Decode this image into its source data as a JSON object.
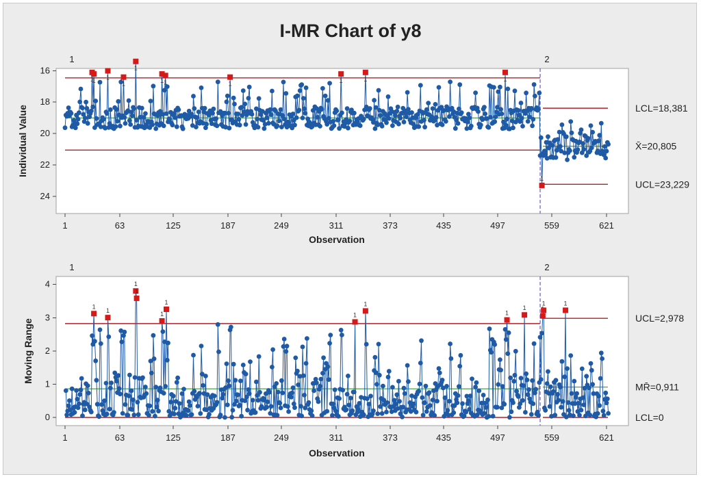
{
  "colors": {
    "data": "#1f5aa6",
    "limits": "#b21f24",
    "center": "#3a9a3a",
    "flag": "#d61a1a",
    "stage_line": "#6a5acd"
  },
  "chart_data": {
    "type": "line",
    "title": "I-MR Chart of y8",
    "stage_change_observation": 545,
    "charts": [
      {
        "name": "individual",
        "ylabel": "Individual Value",
        "xlabel": "Observation",
        "ylim": [
          15,
          24
        ],
        "yticks": [
          "16",
          "18",
          "20",
          "22",
          "24"
        ],
        "xticks": [
          "1",
          "63",
          "125",
          "187",
          "249",
          "311",
          "373",
          "435",
          "497",
          "559",
          "621"
        ],
        "stages": [
          {
            "label": "1",
            "start": 1,
            "end": 545,
            "mean": 19.0,
            "ucl": 21.05,
            "lcl": 16.45
          },
          {
            "label": "2",
            "start": 545,
            "end": 623,
            "mean": 20.805,
            "ucl": 23.229,
            "lcl": 18.381
          }
        ],
        "annotations": {
          "ucl": "UCL=23,229",
          "center": "X̄=20,805",
          "lcl": "LCL=18,381"
        },
        "flagged_points": [
          {
            "x": 32,
            "y": 16.1
          },
          {
            "x": 34,
            "y": 16.2
          },
          {
            "x": 50,
            "y": 16.0
          },
          {
            "x": 68,
            "y": 16.4
          },
          {
            "x": 82,
            "y": 15.4
          },
          {
            "x": 112,
            "y": 16.2
          },
          {
            "x": 116,
            "y": 16.3
          },
          {
            "x": 190,
            "y": 16.4
          },
          {
            "x": 317,
            "y": 16.2
          },
          {
            "x": 345,
            "y": 16.1
          },
          {
            "x": 505,
            "y": 16.1
          },
          {
            "x": 547,
            "y": 23.3
          }
        ]
      },
      {
        "name": "moving-range",
        "ylabel": "Moving Range",
        "xlabel": "Observation",
        "ylim": [
          -0.2,
          4.1
        ],
        "yticks": [
          "0",
          "1",
          "2",
          "3",
          "4"
        ],
        "xticks": [
          "1",
          "63",
          "125",
          "187",
          "249",
          "311",
          "373",
          "435",
          "497",
          "559",
          "621"
        ],
        "stages": [
          {
            "label": "1",
            "start": 1,
            "end": 545,
            "mean": 0.86,
            "ucl": 2.82,
            "lcl": 0
          },
          {
            "label": "2",
            "start": 545,
            "end": 623,
            "mean": 0.911,
            "ucl": 2.978,
            "lcl": 0
          }
        ],
        "annotations": {
          "ucl": "UCL=2,978",
          "center": "MR̄=0,911",
          "lcl": "LCL=0"
        },
        "flagged_points": [
          {
            "x": 34,
            "y": 3.12
          },
          {
            "x": 50,
            "y": 3.0
          },
          {
            "x": 82,
            "y": 3.8
          },
          {
            "x": 83,
            "y": 3.58
          },
          {
            "x": 112,
            "y": 2.9
          },
          {
            "x": 117,
            "y": 3.25
          },
          {
            "x": 333,
            "y": 2.87
          },
          {
            "x": 345,
            "y": 3.2
          },
          {
            "x": 507,
            "y": 2.93
          },
          {
            "x": 527,
            "y": 3.08
          },
          {
            "x": 548,
            "y": 3.05
          },
          {
            "x": 549,
            "y": 3.22
          },
          {
            "x": 574,
            "y": 3.22
          }
        ]
      }
    ]
  }
}
